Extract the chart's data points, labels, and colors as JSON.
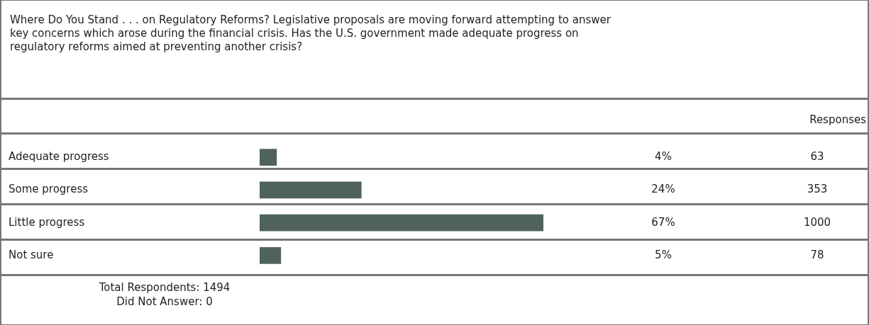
{
  "chart_data": {
    "type": "bar",
    "orientation": "horizontal",
    "title": "Where Do You Stand . . . on Regulatory Reforms? Legislative proposals are moving forward attempting to answer key concerns which arose during the financial crisis. Has the U.S. government made adequate progress on regulatory reforms aimed at preventing another crisis?",
    "categories": [
      "Adequate progress",
      "Some progress",
      "Little progress",
      "Not sure"
    ],
    "values": [
      4,
      24,
      67,
      5
    ],
    "value_labels": [
      "4%",
      "24%",
      "67%",
      "5%"
    ],
    "color": "#4f625e",
    "annotations": [
      "Responses",
      "63",
      "353",
      "1000",
      "78",
      "Total Respondents: 1494",
      "Did Not Answer: 0"
    ]
  }
}
